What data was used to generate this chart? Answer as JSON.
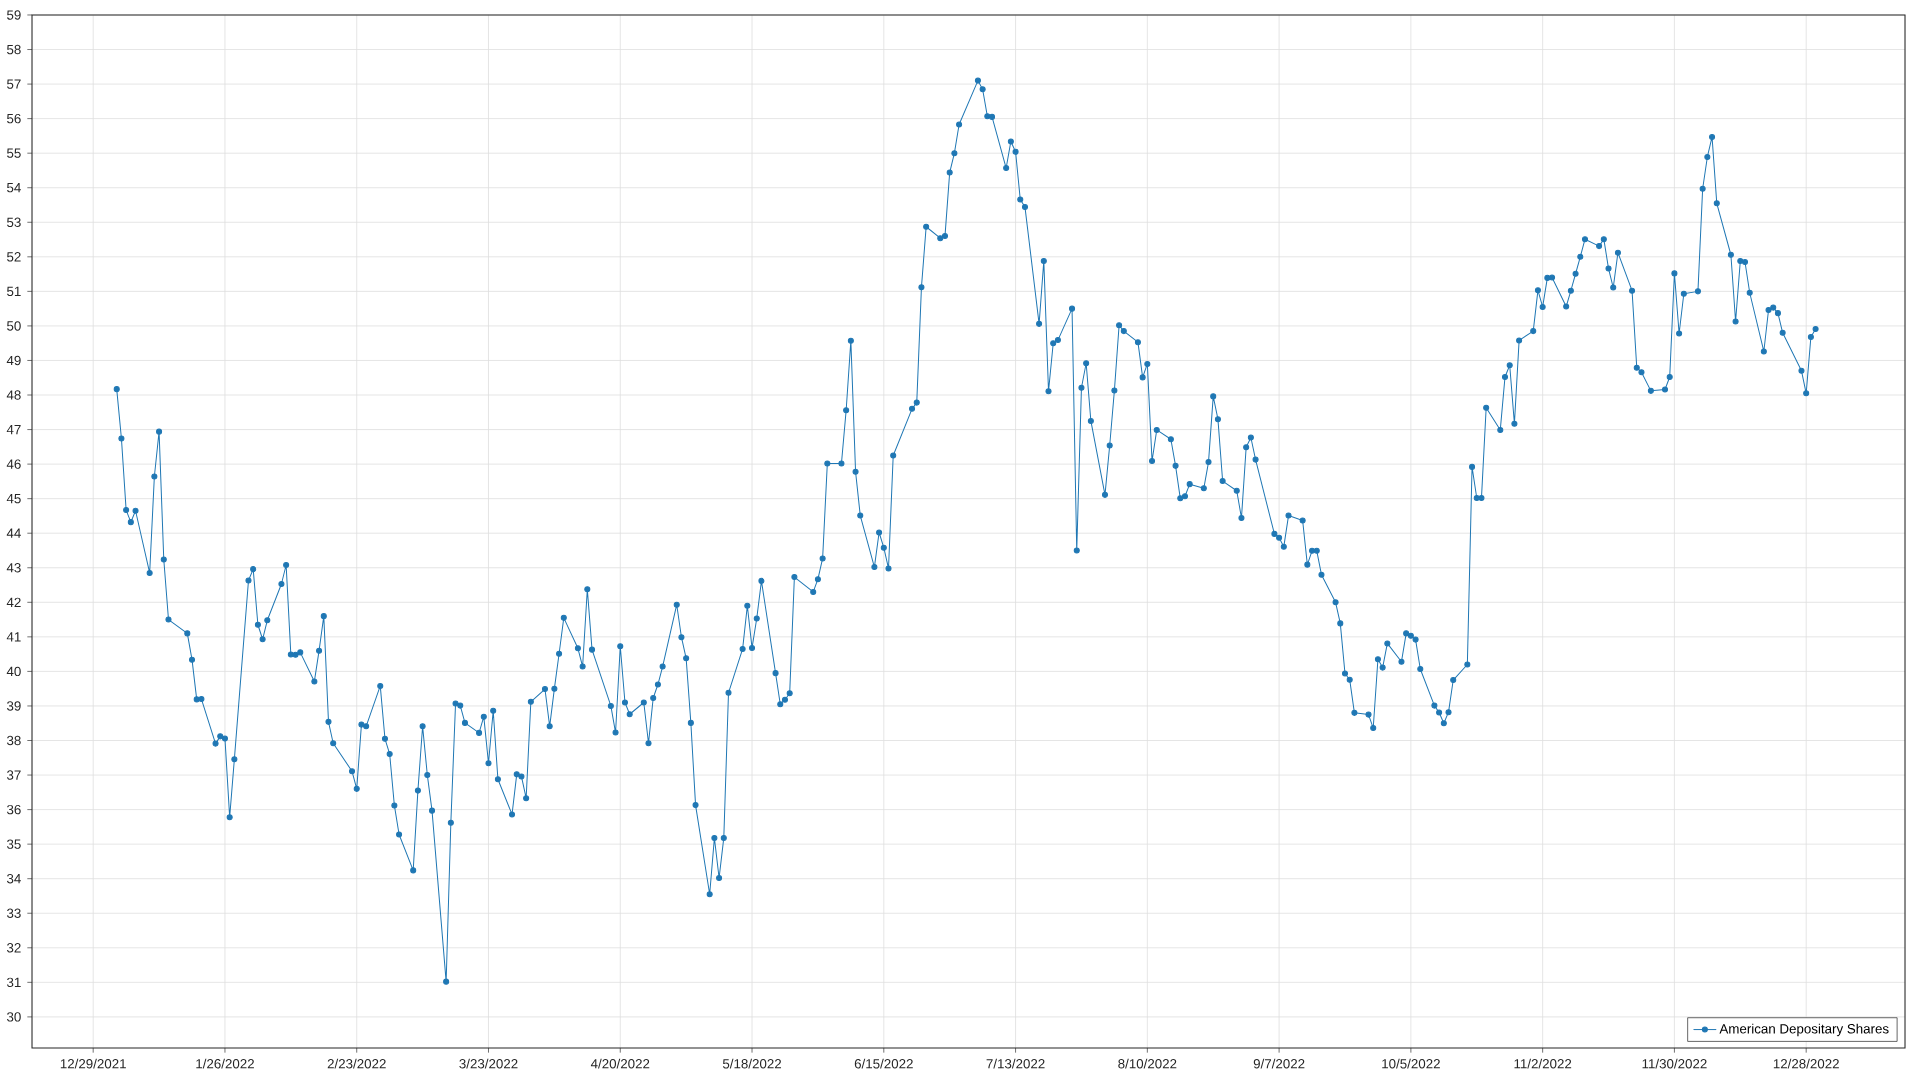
{
  "chart_data": {
    "type": "line",
    "x": [
      "2022-01-03",
      "2022-01-04",
      "2022-01-05",
      "2022-01-06",
      "2022-01-07",
      "2022-01-10",
      "2022-01-11",
      "2022-01-12",
      "2022-01-13",
      "2022-01-14",
      "2022-01-18",
      "2022-01-19",
      "2022-01-20",
      "2022-01-21",
      "2022-01-24",
      "2022-01-25",
      "2022-01-26",
      "2022-01-27",
      "2022-01-28",
      "2022-01-31",
      "2022-02-01",
      "2022-02-02",
      "2022-02-03",
      "2022-02-04",
      "2022-02-07",
      "2022-02-08",
      "2022-02-09",
      "2022-02-10",
      "2022-02-11",
      "2022-02-14",
      "2022-02-15",
      "2022-02-16",
      "2022-02-17",
      "2022-02-18",
      "2022-02-22",
      "2022-02-23",
      "2022-02-24",
      "2022-02-25",
      "2022-02-28",
      "2022-03-01",
      "2022-03-02",
      "2022-03-03",
      "2022-03-04",
      "2022-03-07",
      "2022-03-08",
      "2022-03-09",
      "2022-03-10",
      "2022-03-11",
      "2022-03-14",
      "2022-03-15",
      "2022-03-16",
      "2022-03-17",
      "2022-03-18",
      "2022-03-21",
      "2022-03-22",
      "2022-03-23",
      "2022-03-24",
      "2022-03-25",
      "2022-03-28",
      "2022-03-29",
      "2022-03-30",
      "2022-03-31",
      "2022-04-01",
      "2022-04-04",
      "2022-04-05",
      "2022-04-06",
      "2022-04-07",
      "2022-04-08",
      "2022-04-11",
      "2022-04-12",
      "2022-04-13",
      "2022-04-14",
      "2022-04-18",
      "2022-04-19",
      "2022-04-20",
      "2022-04-21",
      "2022-04-22",
      "2022-04-25",
      "2022-04-26",
      "2022-04-27",
      "2022-04-28",
      "2022-04-29",
      "2022-05-02",
      "2022-05-03",
      "2022-05-04",
      "2022-05-05",
      "2022-05-06",
      "2022-05-09",
      "2022-05-10",
      "2022-05-11",
      "2022-05-12",
      "2022-05-13",
      "2022-05-16",
      "2022-05-17",
      "2022-05-18",
      "2022-05-19",
      "2022-05-20",
      "2022-05-23",
      "2022-05-24",
      "2022-05-25",
      "2022-05-26",
      "2022-05-27",
      "2022-05-31",
      "2022-06-01",
      "2022-06-02",
      "2022-06-03",
      "2022-06-06",
      "2022-06-07",
      "2022-06-08",
      "2022-06-09",
      "2022-06-10",
      "2022-06-13",
      "2022-06-14",
      "2022-06-15",
      "2022-06-16",
      "2022-06-17",
      "2022-06-21",
      "2022-06-22",
      "2022-06-23",
      "2022-06-24",
      "2022-06-27",
      "2022-06-28",
      "2022-06-29",
      "2022-06-30",
      "2022-07-01",
      "2022-07-05",
      "2022-07-06",
      "2022-07-07",
      "2022-07-08",
      "2022-07-11",
      "2022-07-12",
      "2022-07-13",
      "2022-07-14",
      "2022-07-15",
      "2022-07-18",
      "2022-07-19",
      "2022-07-20",
      "2022-07-21",
      "2022-07-22",
      "2022-07-25",
      "2022-07-26",
      "2022-07-27",
      "2022-07-28",
      "2022-07-29",
      "2022-08-01",
      "2022-08-02",
      "2022-08-03",
      "2022-08-04",
      "2022-08-05",
      "2022-08-08",
      "2022-08-09",
      "2022-08-10",
      "2022-08-11",
      "2022-08-12",
      "2022-08-15",
      "2022-08-16",
      "2022-08-17",
      "2022-08-18",
      "2022-08-19",
      "2022-08-22",
      "2022-08-23",
      "2022-08-24",
      "2022-08-25",
      "2022-08-26",
      "2022-08-29",
      "2022-08-30",
      "2022-08-31",
      "2022-09-01",
      "2022-09-02",
      "2022-09-06",
      "2022-09-07",
      "2022-09-08",
      "2022-09-09",
      "2022-09-12",
      "2022-09-13",
      "2022-09-14",
      "2022-09-15",
      "2022-09-16",
      "2022-09-19",
      "2022-09-20",
      "2022-09-21",
      "2022-09-22",
      "2022-09-23",
      "2022-09-26",
      "2022-09-27",
      "2022-09-28",
      "2022-09-29",
      "2022-09-30",
      "2022-10-03",
      "2022-10-04",
      "2022-10-05",
      "2022-10-06",
      "2022-10-07",
      "2022-10-10",
      "2022-10-11",
      "2022-10-12",
      "2022-10-13",
      "2022-10-14",
      "2022-10-17",
      "2022-10-18",
      "2022-10-19",
      "2022-10-20",
      "2022-10-21",
      "2022-10-24",
      "2022-10-25",
      "2022-10-26",
      "2022-10-27",
      "2022-10-28",
      "2022-10-31",
      "2022-11-01",
      "2022-11-02",
      "2022-11-03",
      "2022-11-04",
      "2022-11-07",
      "2022-11-08",
      "2022-11-09",
      "2022-11-10",
      "2022-11-11",
      "2022-11-14",
      "2022-11-15",
      "2022-11-16",
      "2022-11-17",
      "2022-11-18",
      "2022-11-21",
      "2022-11-22",
      "2022-11-23",
      "2022-11-25",
      "2022-11-28",
      "2022-11-29",
      "2022-11-30",
      "2022-12-01",
      "2022-12-02",
      "2022-12-05",
      "2022-12-06",
      "2022-12-07",
      "2022-12-08",
      "2022-12-09",
      "2022-12-12",
      "2022-12-13",
      "2022-12-14",
      "2022-12-15",
      "2022-12-16",
      "2022-12-19",
      "2022-12-20",
      "2022-12-21",
      "2022-12-22",
      "2022-12-23",
      "2022-12-27",
      "2022-12-28",
      "2022-12-29",
      "2022-12-30"
    ],
    "series": [
      {
        "name": "American Depositary Shares",
        "color": "#1f77b4",
        "values": [
          48.17,
          46.74,
          44.67,
          44.32,
          44.65,
          42.85,
          45.64,
          46.94,
          43.24,
          41.5,
          41.1,
          40.34,
          39.19,
          39.2,
          37.91,
          38.12,
          38.06,
          35.78,
          37.46,
          42.63,
          42.96,
          41.35,
          40.93,
          41.48,
          42.53,
          43.08,
          40.49,
          40.48,
          40.55,
          39.71,
          40.6,
          41.6,
          38.54,
          37.92,
          37.11,
          36.6,
          38.46,
          38.41,
          39.58,
          38.05,
          37.61,
          36.12,
          35.28,
          34.24,
          36.55,
          38.41,
          37.0,
          35.97,
          31.02,
          35.62,
          39.07,
          39.01,
          38.51,
          38.22,
          38.69,
          37.34,
          38.86,
          36.88,
          35.86,
          37.02,
          36.96,
          36.33,
          39.12,
          39.49,
          38.41,
          39.5,
          40.51,
          41.55,
          40.67,
          40.14,
          42.38,
          40.63,
          39.0,
          38.23,
          40.73,
          39.1,
          38.76,
          39.1,
          37.92,
          39.23,
          39.62,
          40.14,
          41.93,
          40.99,
          40.38,
          38.51,
          36.13,
          33.55,
          35.18,
          34.02,
          35.18,
          39.38,
          40.65,
          41.9,
          40.68,
          41.53,
          42.62,
          39.95,
          39.05,
          39.18,
          39.37,
          42.73,
          42.3,
          42.67,
          43.27,
          46.02,
          46.02,
          47.56,
          49.57,
          45.78,
          44.51,
          43.02,
          44.02,
          43.58,
          42.98,
          46.25,
          47.6,
          47.78,
          51.12,
          52.87,
          52.54,
          52.6,
          54.44,
          55.0,
          55.83,
          57.1,
          56.85,
          56.07,
          56.05,
          54.57,
          55.34,
          55.04,
          53.66,
          53.44,
          50.06,
          51.88,
          48.11,
          49.5,
          49.59,
          50.5,
          43.5,
          48.21,
          48.92,
          47.25,
          45.11,
          46.54,
          48.13,
          50.02,
          49.85,
          49.53,
          48.51,
          48.9,
          46.09,
          46.99,
          46.72,
          45.95,
          45.01,
          45.07,
          45.42,
          45.3,
          46.06,
          47.96,
          47.3,
          45.51,
          45.23,
          44.44,
          46.49,
          46.77,
          46.13,
          43.98,
          43.87,
          43.61,
          44.51,
          44.37,
          43.09,
          43.49,
          43.49,
          42.8,
          42.0,
          41.39,
          39.94,
          39.76,
          38.8,
          38.75,
          38.36,
          40.35,
          40.11,
          40.81,
          40.28,
          41.1,
          41.03,
          40.92,
          40.07,
          39.01,
          38.81,
          38.5,
          38.82,
          39.75,
          40.2,
          45.92,
          45.02,
          45.02,
          47.63,
          46.99,
          48.52,
          48.86,
          47.17,
          49.58,
          49.85,
          51.03,
          50.55,
          51.39,
          51.4,
          50.56,
          51.02,
          51.51,
          52.0,
          52.51,
          52.31,
          52.51,
          51.66,
          51.11,
          52.12,
          51.02,
          48.79,
          48.66,
          48.12,
          48.16,
          48.52,
          51.52,
          49.78,
          50.93,
          51.0,
          53.97,
          54.89,
          55.47,
          53.55,
          52.06,
          50.13,
          51.88,
          51.85,
          50.96,
          49.26,
          50.46,
          50.53,
          50.37,
          49.8,
          48.7,
          48.05,
          49.68,
          49.91
        ]
      }
    ],
    "xlim": [
      "2021-12-16",
      "2023-01-18"
    ],
    "ylim": [
      29.1,
      59
    ],
    "xticks": [
      {
        "value": "2021-12-29",
        "label": "12/29/2021"
      },
      {
        "value": "2022-01-26",
        "label": "1/26/2022"
      },
      {
        "value": "2022-02-23",
        "label": "2/23/2022"
      },
      {
        "value": "2022-03-23",
        "label": "3/23/2022"
      },
      {
        "value": "2022-04-20",
        "label": "4/20/2022"
      },
      {
        "value": "2022-05-18",
        "label": "5/18/2022"
      },
      {
        "value": "2022-06-15",
        "label": "6/15/2022"
      },
      {
        "value": "2022-07-13",
        "label": "7/13/2022"
      },
      {
        "value": "2022-08-10",
        "label": "8/10/2022"
      },
      {
        "value": "2022-09-07",
        "label": "9/7/2022"
      },
      {
        "value": "2022-10-05",
        "label": "10/5/2022"
      },
      {
        "value": "2022-11-02",
        "label": "11/2/2022"
      },
      {
        "value": "2022-11-30",
        "label": "11/30/2022"
      },
      {
        "value": "2022-12-28",
        "label": "12/28/2022"
      }
    ],
    "yticks": [
      30,
      31,
      32,
      33,
      34,
      35,
      36,
      37,
      38,
      39,
      40,
      41,
      42,
      43,
      44,
      45,
      46,
      47,
      48,
      49,
      50,
      51,
      52,
      53,
      54,
      55,
      56,
      57,
      58,
      59
    ],
    "grid": true,
    "legend": "bottom right",
    "marker": "circle",
    "line_style": "solid"
  }
}
